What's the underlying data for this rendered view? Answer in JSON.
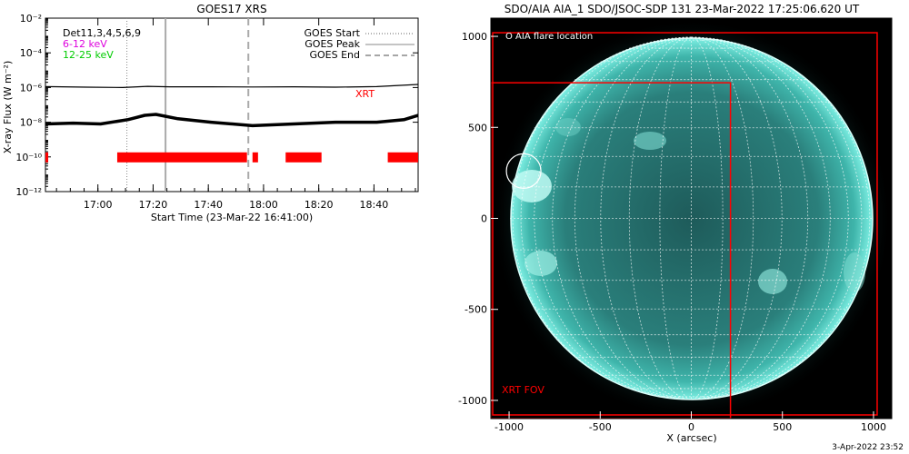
{
  "footer_date": "3-Apr-2022 23:52",
  "colors": {
    "goes_trace": "#000000",
    "xrt_bar": "#ff0000",
    "low_band": "#dd00dd",
    "high_band": "#00cc00",
    "aia_disk": "#2a8f88",
    "aia_limb": "#9ff6ec"
  },
  "chart_data": [
    {
      "type": "line",
      "title": "GOES17 XRS",
      "xlabel": "Start Time (23-Mar-22 16:41:00)",
      "ylabel": "X-ray Flux (W m⁻²)",
      "y_log_scale": true,
      "ylim": [
        1e-12,
        0.01
      ],
      "xlim_minutes_after_start": [
        0,
        135
      ],
      "x_tick_labels": [
        "17:00",
        "17:20",
        "17:40",
        "18:00",
        "18:20",
        "18:40"
      ],
      "x_tick_minutes_after_start": [
        19,
        39,
        59,
        79,
        99,
        119
      ],
      "y_tick_labels": [
        "10⁻¹²",
        "10⁻¹⁰",
        "10⁻⁸",
        "10⁻⁶",
        "10⁻⁴",
        "10⁻²"
      ],
      "y_tick_values": [
        -12,
        -10,
        -8,
        -6,
        -4,
        -2
      ],
      "detectors_label": "Det11,3,4,5,6,9",
      "bands": [
        "6-12 keV",
        "12-25 keV"
      ],
      "series": [
        {
          "name": "long",
          "x_minutes": [
            0,
            15,
            28,
            37,
            45,
            60,
            75,
            90,
            105,
            120,
            135
          ],
          "log_flux": [
            -5.95,
            -5.98,
            -6.0,
            -5.93,
            -5.96,
            -5.96,
            -5.97,
            -5.96,
            -5.98,
            -5.95,
            -5.82
          ]
        },
        {
          "name": "short",
          "x_minutes": [
            0,
            10,
            20,
            30,
            36,
            40,
            48,
            60,
            75,
            90,
            105,
            120,
            130,
            135
          ],
          "log_flux": [
            -8.1,
            -8.05,
            -8.1,
            -7.85,
            -7.6,
            -7.55,
            -7.8,
            -8.0,
            -8.2,
            -8.1,
            -8.0,
            -8.0,
            -7.85,
            -7.6
          ]
        }
      ],
      "markers": [
        {
          "name": "GOES Start",
          "style": "dotted",
          "time_min": 29.5
        },
        {
          "name": "GOES Peak",
          "style": "solid",
          "time_min": 43.5
        },
        {
          "name": "GOES End",
          "style": "dashed",
          "time_min": 73.5
        }
      ],
      "legend_entries": [
        "GOES Start",
        "GOES Peak",
        "GOES End"
      ],
      "xrt_label": "XRT",
      "xrt_intervals_minutes": [
        [
          0,
          1
        ],
        [
          26,
          73
        ],
        [
          75,
          77
        ],
        [
          87,
          100
        ],
        [
          124,
          135
        ]
      ],
      "xrt_flux_level": -10
    },
    {
      "type": "image",
      "title": "SDO/AIA AIA_1 SDO/JSOC-SDP 131 23-Mar-2022 17:25:06.620 UT",
      "xlabel": "X (arcsec)",
      "x_tick_labels": [
        "-1000",
        "-500",
        "0",
        "500",
        "1000"
      ],
      "y_tick_labels": [
        "-1000",
        "-500",
        "0",
        "500",
        "1000"
      ],
      "xlim": [
        -1100,
        1100
      ],
      "ylim": [
        -1100,
        1100
      ],
      "solar_radius_arcsec": 995,
      "legend": "O AIA flare location",
      "flare_location_arcsec": [
        -920,
        260
      ],
      "xrt_fov_label": "XRT FOV",
      "xrt_fov_outer_arcsec": [
        -1090,
        -1080,
        1020,
        1020
      ],
      "xrt_fov_inner_arcsec": [
        -1100,
        -1100,
        215,
        745
      ]
    }
  ]
}
